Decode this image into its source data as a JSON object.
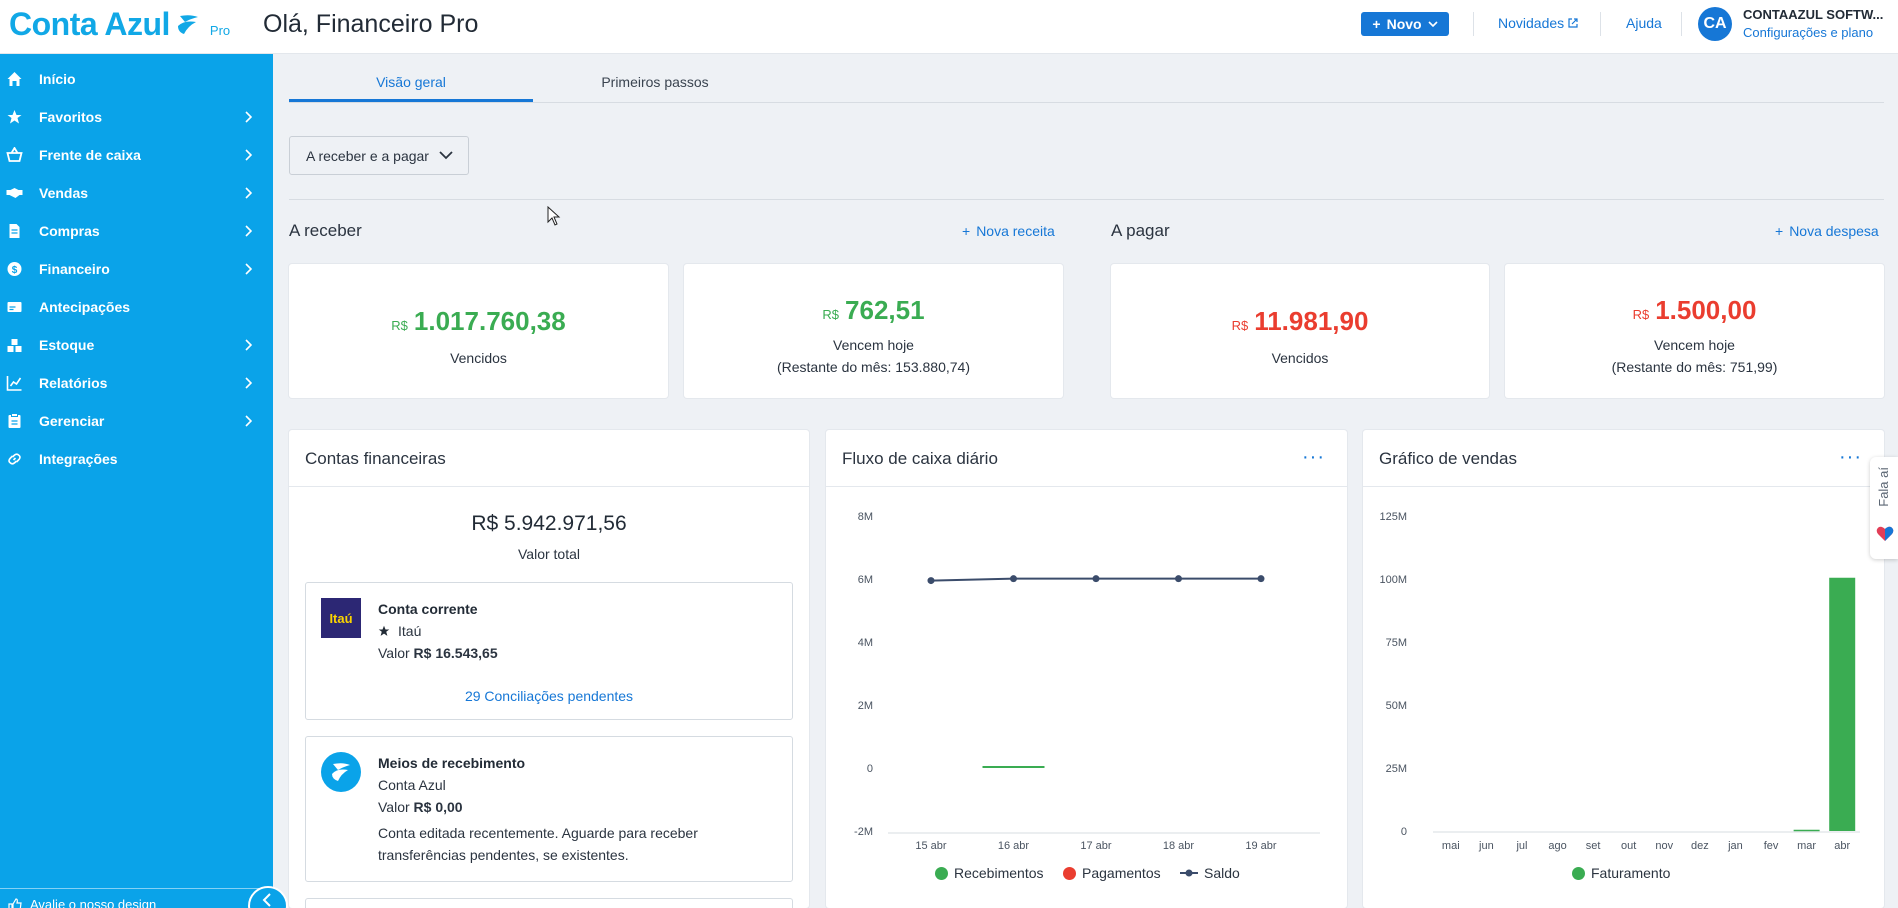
{
  "header": {
    "logo_text": "Conta Azul",
    "logo_badge": "Pro",
    "greeting": "Olá, Financeiro Pro",
    "new_button": "Novo",
    "news_link": "Novidades",
    "help_link": "Ajuda",
    "avatar_initials": "CA",
    "company_name": "CONTAAZUL SOFTW...",
    "config_link": "Configurações e plano"
  },
  "sidebar": {
    "items": [
      {
        "label": "Início",
        "icon": "home-icon"
      },
      {
        "label": "Favoritos",
        "icon": "star-icon"
      },
      {
        "label": "Frente de caixa",
        "icon": "basket-icon"
      },
      {
        "label": "Vendas",
        "icon": "handshake-icon"
      },
      {
        "label": "Compras",
        "icon": "document-icon"
      },
      {
        "label": "Financeiro",
        "icon": "dollar-icon"
      },
      {
        "label": "Antecipações",
        "icon": "card-icon"
      },
      {
        "label": "Estoque",
        "icon": "boxes-icon"
      },
      {
        "label": "Relatórios",
        "icon": "chart-icon"
      },
      {
        "label": "Gerenciar",
        "icon": "clipboard-icon"
      },
      {
        "label": "Integrações",
        "icon": "link-icon"
      }
    ],
    "footer_text": "Avalie o nosso design"
  },
  "tabs": {
    "overview": "Visão geral",
    "first_steps": "Primeiros passos"
  },
  "filter": {
    "label": "A receber e a pagar"
  },
  "receivable": {
    "title": "A receber",
    "action": "Nova receita",
    "overdue": {
      "currency": "R$",
      "value": "1.017.760,38",
      "label": "Vencidos"
    },
    "today": {
      "currency": "R$",
      "value": "762,51",
      "label": "Vencem hoje",
      "remaining": "(Restante do mês: 153.880,74)"
    }
  },
  "payable": {
    "title": "A pagar",
    "action": "Nova despesa",
    "overdue": {
      "currency": "R$",
      "value": "11.981,90",
      "label": "Vencidos"
    },
    "today": {
      "currency": "R$",
      "value": "1.500,00",
      "label": "Vencem hoje",
      "remaining": "(Restante do mês: 751,99)"
    }
  },
  "accounts": {
    "title": "Contas financeiras",
    "total_value": "R$ 5.942.971,56",
    "total_label": "Valor total",
    "items": [
      {
        "name": "Conta corrente",
        "bank": "Itaú",
        "logo_text": "Itaú",
        "value_label": "Valor",
        "value": "R$ 16.543,65",
        "link": "29 Conciliações pendentes"
      },
      {
        "name": "Meios de recebimento",
        "bank": "Conta Azul",
        "value_label": "Valor",
        "value": "R$ 0,00",
        "note_line1": "Conta editada recentemente. Aguarde para receber",
        "note_line2": "transferências pendentes, se existentes."
      }
    ]
  },
  "cashflow": {
    "title": "Fluxo de caixa diário",
    "more": "···",
    "legend": {
      "receipts": "Recebimentos",
      "payments": "Pagamentos",
      "balance": "Saldo"
    }
  },
  "sales": {
    "title": "Gráfico de vendas",
    "more": "···",
    "legend": {
      "revenue": "Faturamento"
    }
  },
  "feedback_tab": "Fala aí",
  "colors": {
    "sidebar": "#0aa3e9",
    "primary": "#1677d6",
    "positive": "#3aac52",
    "negative": "#ea3d2f",
    "balance_line": "#3b4c6b"
  },
  "chart_data": [
    {
      "type": "line",
      "title": "Fluxo de caixa diário",
      "categories": [
        "15 abr",
        "16 abr",
        "17 abr",
        "18 abr",
        "19 abr"
      ],
      "y_ticks": [
        "8M",
        "6M",
        "4M",
        "2M",
        "0",
        "-2M"
      ],
      "ylim": [
        -2000000,
        8000000
      ],
      "series": [
        {
          "name": "Recebimentos",
          "color": "#3aac52",
          "values": [
            null,
            0,
            null,
            null,
            null
          ]
        },
        {
          "name": "Pagamentos",
          "color": "#ea3d2f",
          "values": [
            null,
            null,
            null,
            null,
            null
          ]
        },
        {
          "name": "Saldo",
          "color": "#3b4c6b",
          "values": [
            5950000,
            6010000,
            6010000,
            6010000,
            6010000
          ]
        }
      ]
    },
    {
      "type": "bar",
      "title": "Gráfico de vendas",
      "categories": [
        "mai",
        "jun",
        "jul",
        "ago",
        "set",
        "out",
        "nov",
        "dez",
        "jan",
        "fev",
        "mar",
        "abr"
      ],
      "y_ticks": [
        "125M",
        "100M",
        "75M",
        "50M",
        "25M",
        "0"
      ],
      "ylim": [
        0,
        125000000
      ],
      "series": [
        {
          "name": "Faturamento",
          "color": "#3aac52",
          "values": [
            0,
            0,
            0,
            0,
            0,
            0,
            0,
            0,
            0,
            0,
            500000,
            100500000
          ]
        }
      ]
    }
  ]
}
